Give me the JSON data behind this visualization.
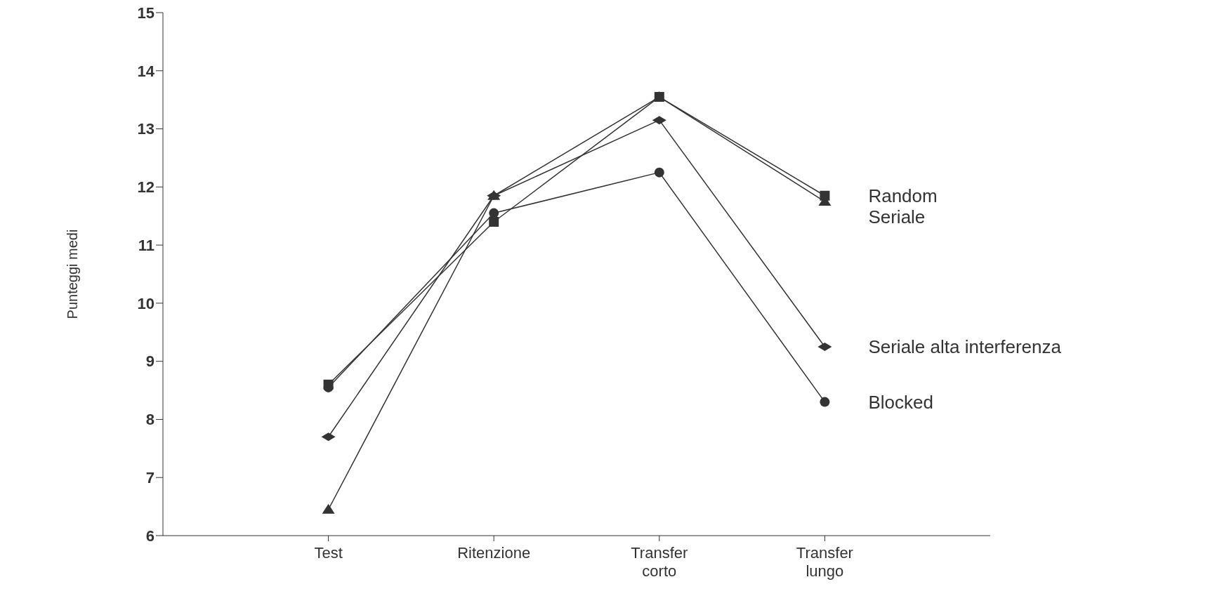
{
  "chart_data": {
    "type": "line",
    "ylabel": "Punteggi medi",
    "categories": [
      "Test",
      "Ritenzione",
      "Transfer corto",
      "Transfer lungo"
    ],
    "ylim": [
      6,
      15
    ],
    "yticks": [
      6,
      7,
      8,
      9,
      10,
      11,
      12,
      13,
      14,
      15
    ],
    "grid": false,
    "series": [
      {
        "name": "Random",
        "color": "#333333",
        "marker": "square",
        "values": [
          8.6,
          11.4,
          13.55,
          11.85
        ]
      },
      {
        "name": "Seriale",
        "color": "#333333",
        "marker": "triangle",
        "values": [
          6.45,
          11.85,
          13.55,
          11.75
        ]
      },
      {
        "name": "Seriale alta interferenza",
        "color": "#333333",
        "marker": "diamond",
        "values": [
          7.7,
          11.85,
          13.15,
          9.25
        ]
      },
      {
        "name": "Blocked",
        "color": "#333333",
        "marker": "circle",
        "values": [
          8.55,
          11.55,
          12.25,
          8.3
        ]
      }
    ]
  }
}
